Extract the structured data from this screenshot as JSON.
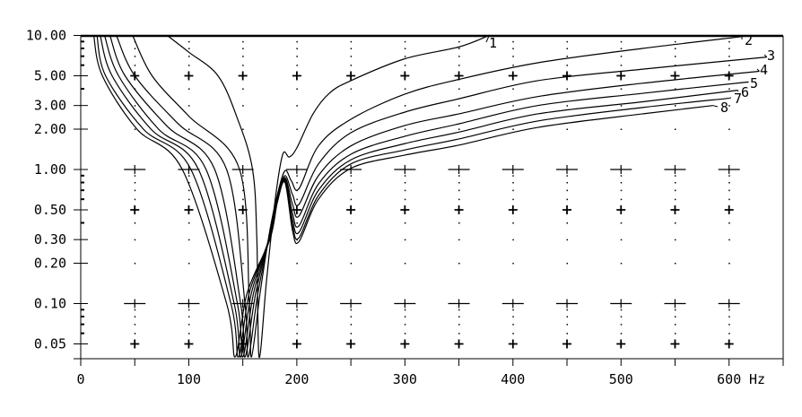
{
  "chart_data": {
    "type": "line",
    "title": "",
    "xlabel": "",
    "ylabel": "",
    "x_unit": "Hz",
    "xlim": [
      0,
      650
    ],
    "ylim": [
      0.04,
      10
    ],
    "y_scale": "log",
    "grid": "dotted",
    "x_ticks": [
      0,
      100,
      200,
      300,
      400,
      500,
      600
    ],
    "x_tick_labels": [
      "0",
      "100",
      "200",
      "300",
      "400",
      "500",
      "600"
    ],
    "y_ticks": [
      10,
      5,
      3,
      2,
      1,
      0.5,
      0.3,
      0.2,
      0.1,
      0.05
    ],
    "y_tick_labels": [
      "10.00",
      "5.00",
      "3.00",
      "2.00",
      "1.00",
      "0.50",
      "0.30",
      "0.20",
      "0.10",
      "0.05"
    ],
    "line_color": "#000000",
    "series": [
      {
        "name": "1",
        "points": [
          [
            80,
            10
          ],
          [
            100,
            7.5
          ],
          [
            127,
            5
          ],
          [
            145,
            2.4
          ],
          [
            159,
            1
          ],
          [
            163,
            0.3
          ],
          [
            165,
            0.04
          ],
          [
            172,
            0.15
          ],
          [
            180,
            0.6
          ],
          [
            187,
            1.3
          ],
          [
            193,
            1.24
          ],
          [
            200,
            1.45
          ],
          [
            215,
            2.6
          ],
          [
            230,
            3.7
          ],
          [
            250,
            4.6
          ],
          [
            300,
            6.7
          ],
          [
            350,
            8.2
          ],
          [
            378,
            10
          ]
        ]
      },
      {
        "name": "2",
        "points": [
          [
            48,
            10
          ],
          [
            66,
            5
          ],
          [
            100,
            2.5
          ],
          [
            147,
            1
          ],
          [
            156,
            0.1
          ],
          [
            158,
            0.04
          ],
          [
            166,
            0.12
          ],
          [
            175,
            0.35
          ],
          [
            182,
            0.65
          ],
          [
            189,
            0.98
          ],
          [
            195,
            0.82
          ],
          [
            202,
            0.72
          ],
          [
            220,
            1.5
          ],
          [
            250,
            2.37
          ],
          [
            300,
            3.65
          ],
          [
            350,
            4.7
          ],
          [
            423,
            6.25
          ],
          [
            520,
            8
          ],
          [
            612,
            9.8
          ]
        ]
      },
      {
        "name": "3",
        "points": [
          [
            33,
            10
          ],
          [
            50,
            5
          ],
          [
            90,
            2.2
          ],
          [
            135,
            1
          ],
          [
            152,
            0.1
          ],
          [
            155,
            0.04
          ],
          [
            164,
            0.12
          ],
          [
            175,
            0.33
          ],
          [
            182,
            0.62
          ],
          [
            189,
            0.9
          ],
          [
            196,
            0.65
          ],
          [
            202,
            0.55
          ],
          [
            220,
            1.1
          ],
          [
            250,
            1.88
          ],
          [
            300,
            2.68
          ],
          [
            350,
            3.37
          ],
          [
            423,
            4.6
          ],
          [
            520,
            5.6
          ],
          [
            635,
            6.9
          ]
        ]
      },
      {
        "name": "4",
        "points": [
          [
            27,
            10
          ],
          [
            41,
            5
          ],
          [
            80,
            2.1
          ],
          [
            124,
            1
          ],
          [
            148,
            0.1
          ],
          [
            152,
            0.04
          ],
          [
            162,
            0.12
          ],
          [
            175,
            0.33
          ],
          [
            182,
            0.62
          ],
          [
            189,
            0.87
          ],
          [
            196,
            0.55
          ],
          [
            202,
            0.45
          ],
          [
            220,
            0.9
          ],
          [
            250,
            1.5
          ],
          [
            300,
            2.13
          ],
          [
            350,
            2.6
          ],
          [
            423,
            3.5
          ],
          [
            520,
            4.4
          ],
          [
            628,
            5.4
          ]
        ]
      },
      {
        "name": "5",
        "points": [
          [
            22,
            10
          ],
          [
            35,
            5
          ],
          [
            72,
            2
          ],
          [
            116,
            1
          ],
          [
            145,
            0.1
          ],
          [
            150,
            0.04
          ],
          [
            160,
            0.12
          ],
          [
            175,
            0.32
          ],
          [
            182,
            0.6
          ],
          [
            189,
            0.85
          ],
          [
            196,
            0.47
          ],
          [
            202,
            0.38
          ],
          [
            220,
            0.78
          ],
          [
            250,
            1.3
          ],
          [
            300,
            1.77
          ],
          [
            350,
            2.19
          ],
          [
            423,
            3.0
          ],
          [
            520,
            3.7
          ],
          [
            618,
            4.5
          ]
        ]
      },
      {
        "name": "6",
        "points": [
          [
            18,
            10
          ],
          [
            29,
            5
          ],
          [
            65,
            2
          ],
          [
            109,
            1
          ],
          [
            142,
            0.1
          ],
          [
            148,
            0.04
          ],
          [
            158,
            0.12
          ],
          [
            175,
            0.32
          ],
          [
            182,
            0.6
          ],
          [
            189,
            0.83
          ],
          [
            196,
            0.42
          ],
          [
            202,
            0.34
          ],
          [
            220,
            0.7
          ],
          [
            250,
            1.18
          ],
          [
            300,
            1.56
          ],
          [
            350,
            1.9
          ],
          [
            423,
            2.6
          ],
          [
            520,
            3.2
          ],
          [
            608,
            3.9
          ]
        ]
      },
      {
        "name": "7",
        "points": [
          [
            15,
            10
          ],
          [
            23,
            5
          ],
          [
            58,
            2
          ],
          [
            102,
            1
          ],
          [
            139,
            0.1
          ],
          [
            146,
            0.04
          ],
          [
            156,
            0.12
          ],
          [
            175,
            0.31
          ],
          [
            182,
            0.58
          ],
          [
            189,
            0.82
          ],
          [
            196,
            0.38
          ],
          [
            202,
            0.31
          ],
          [
            220,
            0.64
          ],
          [
            250,
            1.1
          ],
          [
            300,
            1.4
          ],
          [
            350,
            1.69
          ],
          [
            423,
            2.3
          ],
          [
            520,
            2.9
          ],
          [
            600,
            3.4
          ]
        ]
      },
      {
        "name": "8",
        "points": [
          [
            12,
            10
          ],
          [
            20,
            5
          ],
          [
            52,
            2
          ],
          [
            94,
            1
          ],
          [
            135,
            0.1
          ],
          [
            143,
            0.04
          ],
          [
            154,
            0.12
          ],
          [
            175,
            0.3
          ],
          [
            182,
            0.57
          ],
          [
            189,
            0.8
          ],
          [
            196,
            0.35
          ],
          [
            202,
            0.29
          ],
          [
            220,
            0.6
          ],
          [
            250,
            1.02
          ],
          [
            300,
            1.28
          ],
          [
            350,
            1.52
          ],
          [
            423,
            2.06
          ],
          [
            520,
            2.6
          ],
          [
            585,
            3.0
          ]
        ]
      }
    ]
  }
}
